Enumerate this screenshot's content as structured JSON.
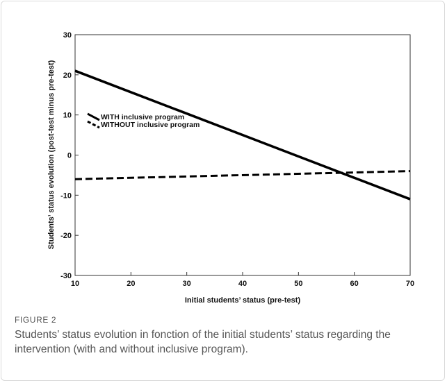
{
  "figure": {
    "label": "FIGURE 2",
    "caption": "Students’ status evolution in fonction of the initial students’ status regarding the intervention (with and without inclusive program)."
  },
  "chart_data": {
    "type": "line",
    "xlabel": "Initial students’ status (pre-test)",
    "ylabel": "Students’ status evolution (post-test minus pre-test)",
    "xlim": [
      10,
      70
    ],
    "ylim": [
      -30,
      30
    ],
    "x_ticks": [
      10,
      20,
      30,
      40,
      50,
      60,
      70
    ],
    "y_ticks": [
      30,
      20,
      10,
      0,
      -10,
      -20,
      -30
    ],
    "grid": false,
    "legend": "inside-left",
    "series": [
      {
        "name": "WITH inclusive program",
        "style": "solid",
        "points": [
          [
            10,
            21
          ],
          [
            70,
            -11
          ]
        ]
      },
      {
        "name": "WITHOUT inclusive program",
        "style": "dashed",
        "points": [
          [
            10,
            -6
          ],
          [
            70,
            -4
          ]
        ]
      }
    ],
    "line_color": "#000000"
  }
}
